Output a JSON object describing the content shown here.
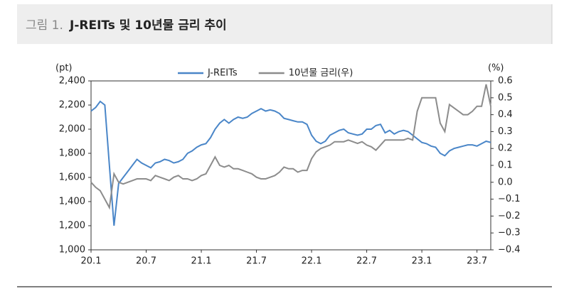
{
  "chart_data": {
    "type": "line",
    "figure_label": "그림 1.",
    "title": "J-REITs 및 10년물 금리 추이",
    "y_unit": "(pt)",
    "y2_unit": "(%)",
    "x": [
      "20.1",
      null,
      null,
      null,
      null,
      null,
      null,
      null,
      null,
      null,
      null,
      null,
      "20.7",
      null,
      null,
      null,
      null,
      null,
      null,
      null,
      null,
      null,
      null,
      null,
      "21.1",
      null,
      null,
      null,
      null,
      null,
      null,
      null,
      null,
      null,
      null,
      null,
      "21.7",
      null,
      null,
      null,
      null,
      null,
      null,
      null,
      null,
      null,
      null,
      null,
      "22.1",
      null,
      null,
      null,
      null,
      null,
      null,
      null,
      null,
      null,
      null,
      null,
      "22.7",
      null,
      null,
      null,
      null,
      null,
      null,
      null,
      null,
      null,
      null,
      null,
      "23.1",
      null,
      null,
      null,
      null,
      null,
      null,
      null,
      null,
      null,
      null,
      null,
      "23.7",
      null,
      null,
      null
    ],
    "series": [
      {
        "name": "J-REITs",
        "color": "#4a86c8",
        "axis": "y",
        "values": [
          2150,
          2180,
          2230,
          2200,
          1700,
          1200,
          1550,
          1600,
          1650,
          1700,
          1750,
          1720,
          1700,
          1680,
          1720,
          1730,
          1750,
          1740,
          1720,
          1730,
          1750,
          1800,
          1820,
          1850,
          1870,
          1880,
          1930,
          2000,
          2050,
          2080,
          2050,
          2080,
          2100,
          2090,
          2100,
          2130,
          2150,
          2170,
          2150,
          2160,
          2150,
          2130,
          2090,
          2080,
          2070,
          2060,
          2060,
          2040,
          1950,
          1900,
          1880,
          1900,
          1950,
          1970,
          1990,
          2000,
          1970,
          1960,
          1950,
          1960,
          2000,
          2000,
          2030,
          2040,
          1970,
          1990,
          1960,
          1980,
          1990,
          1980,
          1950,
          1920,
          1890,
          1880,
          1860,
          1850,
          1800,
          1780,
          1820,
          1840,
          1850,
          1860,
          1870,
          1870,
          1860,
          1880,
          1900,
          1890
        ]
      },
      {
        "name": "10년물 금리(우)",
        "color": "#8c8c8c",
        "axis": "y2",
        "values": [
          0.0,
          -0.03,
          -0.05,
          -0.1,
          -0.15,
          0.05,
          0.0,
          -0.01,
          0.0,
          0.01,
          0.02,
          0.02,
          0.02,
          0.01,
          0.04,
          0.03,
          0.02,
          0.01,
          0.03,
          0.04,
          0.02,
          0.02,
          0.01,
          0.02,
          0.04,
          0.05,
          0.1,
          0.15,
          0.1,
          0.09,
          0.1,
          0.08,
          0.08,
          0.07,
          0.06,
          0.05,
          0.03,
          0.02,
          0.02,
          0.03,
          0.04,
          0.06,
          0.09,
          0.08,
          0.08,
          0.06,
          0.07,
          0.07,
          0.14,
          0.18,
          0.2,
          0.21,
          0.22,
          0.24,
          0.24,
          0.24,
          0.25,
          0.24,
          0.23,
          0.24,
          0.22,
          0.21,
          0.19,
          0.22,
          0.25,
          0.25,
          0.25,
          0.25,
          0.25,
          0.26,
          0.25,
          0.42,
          0.5,
          0.5,
          0.5,
          0.5,
          0.35,
          0.3,
          0.46,
          0.44,
          0.42,
          0.4,
          0.4,
          0.42,
          0.45,
          0.45,
          0.58,
          0.45
        ]
      }
    ],
    "ylim": [
      1000,
      2400
    ],
    "yticks": [
      {
        "value": 1000,
        "label": "1,000"
      },
      {
        "value": 1200,
        "label": "1,200"
      },
      {
        "value": 1400,
        "label": "1,400"
      },
      {
        "value": 1600,
        "label": "1,600"
      },
      {
        "value": 1800,
        "label": "1,800"
      },
      {
        "value": 2000,
        "label": "2,000"
      },
      {
        "value": 2200,
        "label": "2,200"
      },
      {
        "value": 2400,
        "label": "2,400"
      }
    ],
    "y2lim": [
      -0.4,
      0.6
    ],
    "y2ticks": [
      {
        "value": -0.4,
        "label": "−0.4"
      },
      {
        "value": -0.3,
        "label": "−0.3"
      },
      {
        "value": -0.2,
        "label": "−0.2"
      },
      {
        "value": -0.1,
        "label": "−0.1"
      },
      {
        "value": 0,
        "label": "0.0"
      },
      0.1,
      0.2,
      0.3,
      0.4,
      0.5,
      0.6
    ],
    "legend": "top"
  }
}
